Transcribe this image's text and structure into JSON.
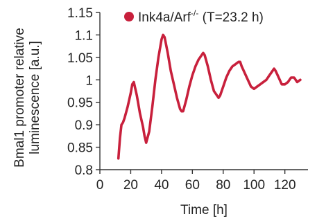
{
  "chart_data": {
    "type": "line",
    "xlabel": "Time [h]",
    "ylabel_line1": "Bmal1 promoter relative",
    "ylabel_line2": "luminescence [a.u.]",
    "xlim": [
      0,
      135
    ],
    "ylim": [
      0.8,
      1.15
    ],
    "xticks": [
      0,
      20,
      40,
      60,
      80,
      100,
      120
    ],
    "yticks": [
      0.8,
      0.85,
      0.9,
      0.95,
      1,
      1.05,
      1.1,
      1.15
    ],
    "ytick_labels": [
      "0.8",
      "0.85",
      "0.9",
      "0.95",
      "1",
      "1.05",
      "1.1",
      "1.15"
    ],
    "grid": false,
    "legend_position": "top-right",
    "series": [
      {
        "name_main": "Ink4a/Arf",
        "name_sup": "-/-",
        "name_suffix": " (T=23.2 h)",
        "color": "#c8203c",
        "x": [
          12,
          13,
          14,
          15,
          16,
          18,
          20,
          21,
          22,
          24,
          26,
          28,
          29,
          30,
          32,
          34,
          36,
          38,
          40,
          41,
          42,
          44,
          46,
          48,
          50,
          52,
          53,
          54,
          56,
          58,
          60,
          62,
          64,
          66,
          67,
          68,
          70,
          72,
          74,
          76,
          77,
          78,
          80,
          82,
          84,
          86,
          88,
          90,
          91,
          92,
          94,
          96,
          98,
          100,
          102,
          104,
          106,
          108,
          110,
          112,
          113,
          114,
          116,
          118,
          120,
          122,
          124,
          126,
          128,
          130
        ],
        "y": [
          0.825,
          0.87,
          0.9,
          0.905,
          0.915,
          0.94,
          0.97,
          0.99,
          0.995,
          0.965,
          0.925,
          0.895,
          0.875,
          0.86,
          0.885,
          0.94,
          1.0,
          1.05,
          1.09,
          1.1,
          1.095,
          1.06,
          1.02,
          0.99,
          0.96,
          0.935,
          0.93,
          0.93,
          0.955,
          0.985,
          1.01,
          1.03,
          1.045,
          1.055,
          1.06,
          1.055,
          1.03,
          1.0,
          0.975,
          0.965,
          0.96,
          0.965,
          0.985,
          1.005,
          1.02,
          1.03,
          1.035,
          1.04,
          1.04,
          1.03,
          1.015,
          1.0,
          0.985,
          0.98,
          0.985,
          0.99,
          0.995,
          1.0,
          1.01,
          1.02,
          1.025,
          1.02,
          1.005,
          0.99,
          0.99,
          0.995,
          1.005,
          1.005,
          0.995,
          1.0
        ]
      }
    ]
  }
}
